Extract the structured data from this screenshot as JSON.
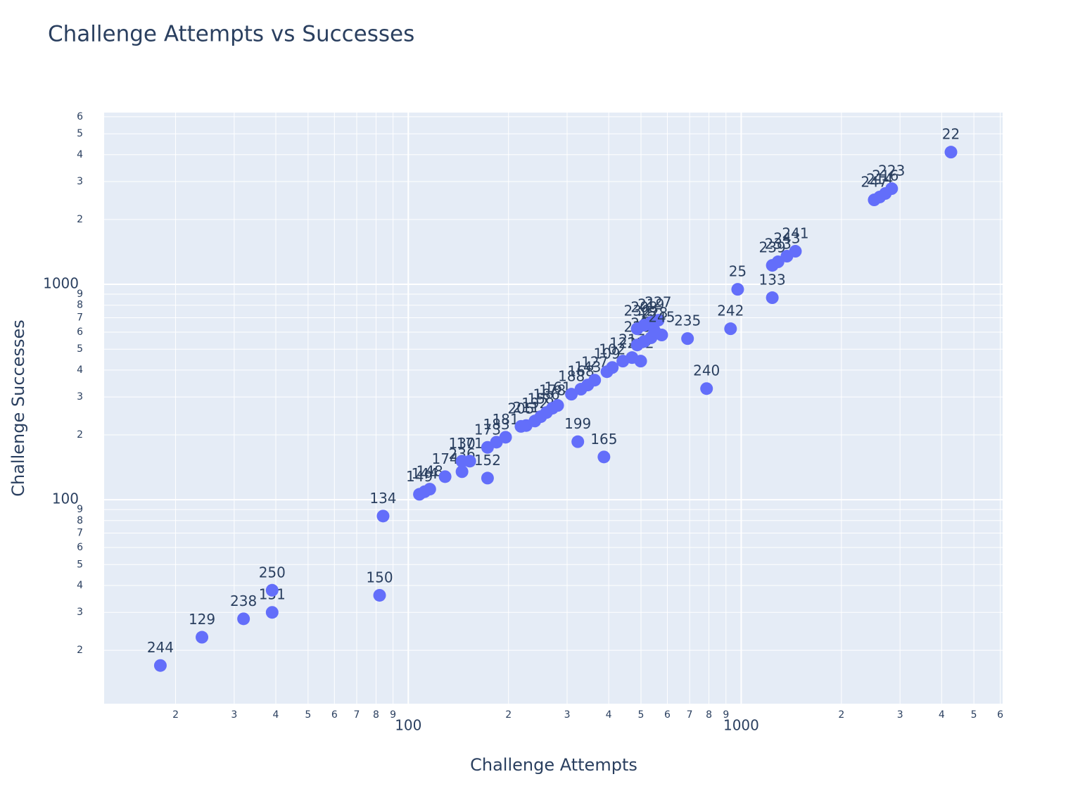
{
  "chart_data": {
    "type": "scatter",
    "title": "Challenge Attempts vs Successes",
    "x_label": "Challenge Attempts",
    "y_label": "Challenge Successes",
    "color": "#636efa",
    "grid": true,
    "log_x": true,
    "log_y": true,
    "xlim": [
      12.2,
      6100
    ],
    "ylim": [
      11.3,
      6270
    ],
    "xticks": [
      {
        "value": 20,
        "label": "2"
      },
      {
        "value": 30,
        "label": "3"
      },
      {
        "value": 40,
        "label": "4"
      },
      {
        "value": 50,
        "label": "5"
      },
      {
        "value": 60,
        "label": "6"
      },
      {
        "value": 70,
        "label": "7"
      },
      {
        "value": 80,
        "label": "8"
      },
      {
        "value": 90,
        "label": "9"
      },
      100,
      {
        "value": 200,
        "label": "2"
      },
      {
        "value": 300,
        "label": "3"
      },
      {
        "value": 400,
        "label": "4"
      },
      {
        "value": 500,
        "label": "5"
      },
      {
        "value": 600,
        "label": "6"
      },
      {
        "value": 700,
        "label": "7"
      },
      {
        "value": 800,
        "label": "8"
      },
      {
        "value": 900,
        "label": "9"
      },
      1000,
      {
        "value": 2000,
        "label": "2"
      },
      {
        "value": 3000,
        "label": "3"
      },
      {
        "value": 4000,
        "label": "4"
      },
      {
        "value": 5000,
        "label": "5"
      },
      {
        "value": 6000,
        "label": "6"
      }
    ],
    "yticks": [
      {
        "value": 20,
        "label": "2"
      },
      {
        "value": 30,
        "label": "3"
      },
      {
        "value": 40,
        "label": "4"
      },
      {
        "value": 50,
        "label": "5"
      },
      {
        "value": 60,
        "label": "6"
      },
      {
        "value": 70,
        "label": "7"
      },
      {
        "value": 80,
        "label": "8"
      },
      {
        "value": 90,
        "label": "9"
      },
      100,
      {
        "value": 200,
        "label": "2"
      },
      {
        "value": 300,
        "label": "3"
      },
      {
        "value": 400,
        "label": "4"
      },
      {
        "value": 500,
        "label": "5"
      },
      {
        "value": 600,
        "label": "6"
      },
      {
        "value": 700,
        "label": "7"
      },
      {
        "value": 800,
        "label": "8"
      },
      {
        "value": 900,
        "label": "9"
      },
      1000,
      {
        "value": 2000,
        "label": "2"
      },
      {
        "value": 3000,
        "label": "3"
      },
      {
        "value": 4000,
        "label": "4"
      },
      {
        "value": 5000,
        "label": "5"
      },
      {
        "value": 6000,
        "label": "6"
      }
    ],
    "labels": [
      "244",
      "129",
      "238",
      "151",
      "250",
      "150",
      "134",
      "149",
      "144",
      "148",
      "174",
      "236",
      "130",
      "171",
      "152",
      "173",
      "183",
      "181",
      "205",
      "211",
      "192",
      "158",
      "186",
      "178",
      "161",
      "199",
      "165",
      "188",
      "168",
      "143",
      "127",
      "109",
      "102",
      "122",
      "217",
      "212",
      "226",
      "201",
      "213",
      "228",
      "230",
      "208",
      "219",
      "227",
      "245",
      "235",
      "240",
      "242",
      "25",
      "133",
      "239",
      "233",
      "243",
      "241",
      "247",
      "214",
      "216",
      "223",
      "22"
    ],
    "x": [
      18,
      24,
      32,
      39,
      39,
      82,
      84,
      108,
      112,
      116,
      129,
      145,
      145,
      153,
      173,
      173,
      184,
      196,
      218,
      226,
      240,
      250,
      260,
      271,
      281,
      323,
      387,
      309,
      330,
      346,
      363,
      395,
      410,
      441,
      470,
      499,
      487,
      511,
      536,
      549,
      487,
      511,
      536,
      563,
      577,
      690,
      787,
      929,
      976,
      1240,
      1240,
      1290,
      1372,
      1455,
      2509,
      2606,
      2710,
      2831,
      4266
    ],
    "values": [
      17,
      23,
      28,
      30,
      38,
      36,
      84,
      106,
      109,
      112,
      128,
      135,
      151,
      151,
      126,
      175,
      185,
      195,
      219,
      221,
      232,
      243,
      254,
      266,
      274,
      186,
      158,
      309,
      326,
      341,
      359,
      393,
      411,
      440,
      457,
      440,
      523,
      543,
      565,
      608,
      622,
      646,
      666,
      681,
      582,
      560,
      328,
      622,
      948,
      867,
      1225,
      1272,
      1351,
      1424,
      2466,
      2543,
      2641,
      2782,
      4110
    ]
  }
}
